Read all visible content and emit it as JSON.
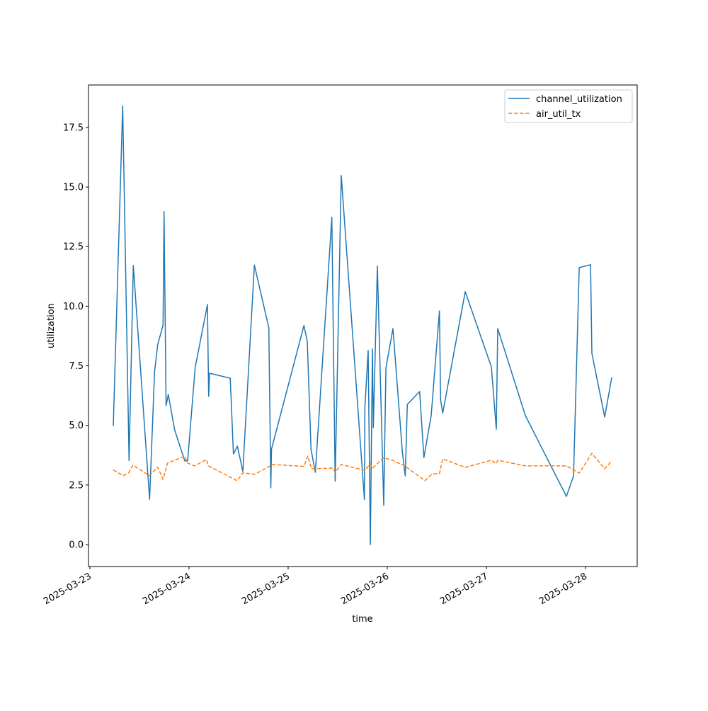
{
  "chart_data": {
    "type": "line",
    "title": "",
    "xlabel": "time",
    "ylabel": "utilization",
    "x_units": "days since 2025-03-23 00:00",
    "xlim": [
      -0.014,
      5.521
    ],
    "ylim": [
      -0.92,
      19.28
    ],
    "xticks": [
      0,
      1,
      2,
      3,
      4,
      5
    ],
    "xtick_labels": [
      "2025-03-23",
      "2025-03-24",
      "2025-03-25",
      "2025-03-26",
      "2025-03-27",
      "2025-03-28"
    ],
    "yticks": [
      0,
      2.5,
      5,
      7.5,
      10,
      12.5,
      15,
      17.5
    ],
    "ytick_labels": [
      "0.0",
      "2.5",
      "5.0",
      "7.5",
      "10.0",
      "12.5",
      "15.0",
      "17.5"
    ],
    "grid": false,
    "legend_position": "top-right",
    "series": [
      {
        "name": "channel_utilization",
        "color": "#1f77b4",
        "style": "solid",
        "x": [
          0.236,
          0.331,
          0.395,
          0.438,
          0.602,
          0.652,
          0.684,
          0.738,
          0.748,
          0.769,
          0.791,
          0.855,
          0.957,
          0.986,
          1.062,
          1.186,
          1.198,
          1.207,
          1.416,
          1.448,
          1.488,
          1.543,
          1.659,
          1.805,
          1.825,
          1.832,
          2.159,
          2.193,
          2.231,
          2.274,
          2.441,
          2.474,
          2.536,
          2.769,
          2.774,
          2.807,
          2.829,
          2.85,
          2.859,
          2.9,
          2.964,
          2.986,
          3.057,
          3.152,
          3.181,
          3.202,
          3.326,
          3.369,
          3.443,
          3.526,
          3.538,
          3.559,
          3.786,
          4.05,
          4.1,
          4.114,
          4.393,
          4.807,
          4.879,
          4.936,
          5.05,
          5.064,
          5.193,
          5.264
        ],
        "y": [
          4.97,
          18.4,
          3.52,
          11.71,
          1.9,
          7.25,
          8.38,
          9.21,
          13.97,
          5.83,
          6.3,
          4.81,
          3.51,
          3.51,
          7.43,
          10.07,
          6.22,
          7.19,
          6.98,
          3.8,
          4.13,
          3.07,
          11.73,
          9.09,
          2.38,
          4.01,
          9.19,
          8.53,
          3.99,
          3.03,
          13.73,
          2.66,
          15.48,
          1.89,
          5.76,
          8.15,
          0.0,
          8.21,
          4.9,
          11.68,
          1.65,
          7.41,
          9.06,
          3.89,
          2.88,
          5.88,
          6.42,
          3.65,
          5.41,
          9.8,
          6.09,
          5.51,
          10.61,
          7.46,
          4.84,
          9.06,
          5.41,
          2.02,
          2.88,
          11.62,
          11.74,
          8.02,
          5.35,
          7.01
        ]
      },
      {
        "name": "air_util_tx",
        "color": "#ff7f0e",
        "style": "dashed",
        "x": [
          0.236,
          0.338,
          0.391,
          0.434,
          0.6,
          0.684,
          0.738,
          0.784,
          0.957,
          0.986,
          1.057,
          1.176,
          1.195,
          1.486,
          1.543,
          1.664,
          1.819,
          1.843,
          2.159,
          2.198,
          2.236,
          2.45,
          2.474,
          2.536,
          2.774,
          2.826,
          2.855,
          2.898,
          2.964,
          3.045,
          3.176,
          3.379,
          3.45,
          3.526,
          3.559,
          3.786,
          4.05,
          4.1,
          4.114,
          4.393,
          4.807,
          4.936,
          5.064,
          5.193,
          5.264
        ],
        "y": [
          3.13,
          2.89,
          3.01,
          3.33,
          2.89,
          3.25,
          2.74,
          3.42,
          3.71,
          3.42,
          3.3,
          3.57,
          3.3,
          2.68,
          3.01,
          2.95,
          3.3,
          3.36,
          3.28,
          3.71,
          3.18,
          3.21,
          3.03,
          3.36,
          3.11,
          3.39,
          3.21,
          3.39,
          3.64,
          3.55,
          3.3,
          2.68,
          2.96,
          2.98,
          3.6,
          3.24,
          3.54,
          3.39,
          3.54,
          3.3,
          3.3,
          3.0,
          3.83,
          3.18,
          3.51
        ]
      }
    ]
  }
}
